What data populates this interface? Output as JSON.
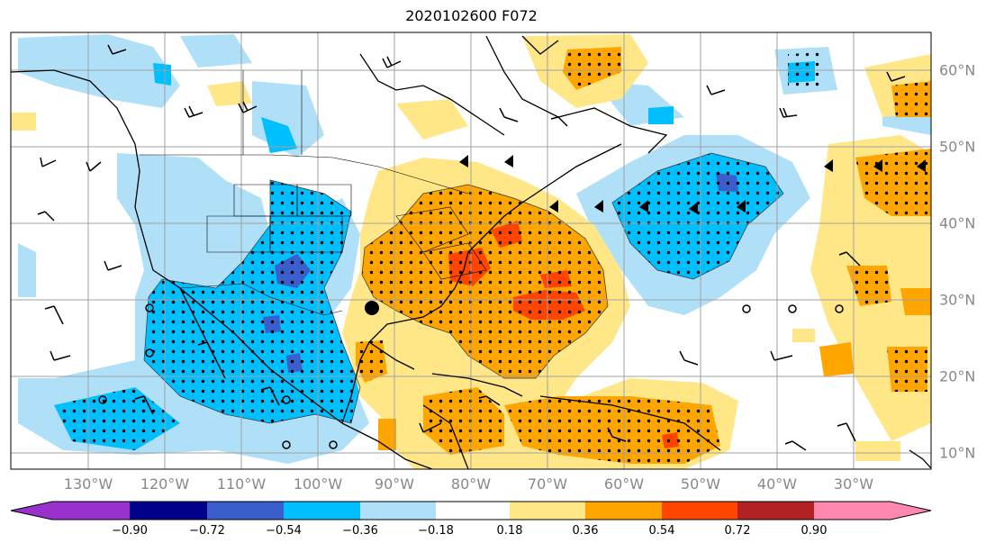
{
  "figure": {
    "title": "2020102600 F072"
  },
  "map": {
    "lon_labels": [
      "130°W",
      "120°W",
      "110°W",
      "100°W",
      "90°W",
      "80°W",
      "70°W",
      "60°W",
      "50°W",
      "40°W",
      "30°W"
    ],
    "lat_labels": [
      "60°N",
      "50°N",
      "40°N",
      "30°N",
      "20°N",
      "10°N"
    ],
    "tick_label_color": "#888888"
  },
  "colorbar": {
    "tick_labels": [
      "−0.90",
      "−0.72",
      "−0.54",
      "−0.36",
      "−0.18",
      "0.18",
      "0.36",
      "0.54",
      "0.72",
      "0.90"
    ],
    "colors": [
      "#9932cc",
      "#00008b",
      "#3a5fcd",
      "#00bfff",
      "#b0e0f8",
      "#ffffff",
      "#ffe787",
      "#ffa500",
      "#ff4500",
      "#b22222",
      "#ff88b0"
    ]
  },
  "shading_colors": {
    "neg_strong": "#3a5fcd",
    "neg_mid": "#00bfff",
    "neg_weak": "#b0e0f8",
    "pos_weak": "#ffe787",
    "pos_mid": "#ffa500",
    "pos_strong": "#ff4500"
  }
}
